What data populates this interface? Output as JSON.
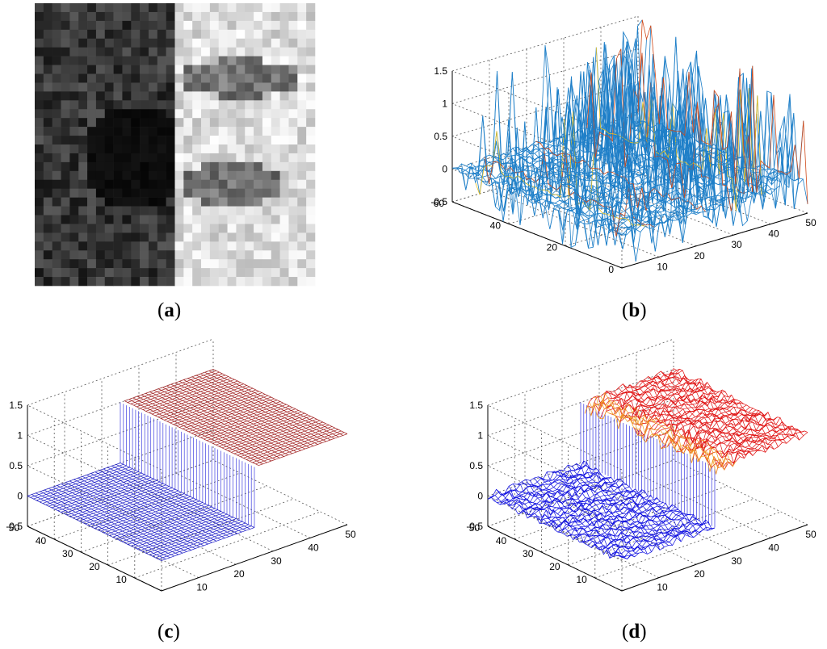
{
  "captions": {
    "a": {
      "open": "(",
      "letter": "a",
      "close": ")"
    },
    "b": {
      "open": "(",
      "letter": "b",
      "close": ")"
    },
    "c": {
      "open": "(",
      "letter": "c",
      "close": ")"
    },
    "d": {
      "open": "(",
      "letter": "d",
      "close": ")"
    }
  },
  "chart_data": [
    {
      "panel": "a",
      "type": "heatmap",
      "description_of_values": "grayscale image, 32x32 pixels; left half dark, right half bright",
      "grid": [
        32,
        32
      ],
      "colors": {
        "dark": "#1a1a1a",
        "bright": "#e6e6e6"
      }
    },
    {
      "panel": "b",
      "type": "surface",
      "x_ticks": [
        "10",
        "20",
        "30",
        "40",
        "50"
      ],
      "y_ticks": [
        "0",
        "20",
        "40",
        "60"
      ],
      "z_ticks": [
        "-0.5",
        "0",
        "0.5",
        "1",
        "1.5"
      ],
      "xlim": [
        0,
        50
      ],
      "ylim": [
        0,
        60
      ],
      "zlim": [
        -0.5,
        1.5
      ],
      "grid": true,
      "colors": {
        "mesh": "#1e7fc8",
        "spike_warm": "#d04a1a",
        "spike_yellow": "#e8c020"
      }
    },
    {
      "panel": "c",
      "type": "surface",
      "x_ticks": [
        "10",
        "20",
        "30",
        "40",
        "50"
      ],
      "y_ticks": [
        "10",
        "20",
        "30",
        "40",
        "50"
      ],
      "z_ticks": [
        "-0.5",
        "0",
        "0.5",
        "1",
        "1.5"
      ],
      "xlim": [
        0,
        50
      ],
      "ylim": [
        0,
        50
      ],
      "zlim": [
        -0.5,
        1.5
      ],
      "low_level": 0,
      "high_level": 1,
      "grid": true,
      "colors": {
        "low": "#2020c8",
        "high": "#a02020",
        "wall": "#4040e0"
      }
    },
    {
      "panel": "d",
      "type": "surface",
      "x_ticks": [
        "10",
        "20",
        "30",
        "40",
        "50"
      ],
      "y_ticks": [
        "10",
        "20",
        "30",
        "40",
        "50"
      ],
      "z_ticks": [
        "-0.5",
        "0",
        "0.5",
        "1",
        "1.5"
      ],
      "xlim": [
        0,
        50
      ],
      "ylim": [
        0,
        50
      ],
      "zlim": [
        -0.5,
        1.5
      ],
      "low_level": 0,
      "high_level": 1,
      "grid": true,
      "colors": {
        "low": "#1010e0",
        "high": "#e01010",
        "edge": "#f0a020",
        "wall": "#3030e0"
      }
    }
  ]
}
